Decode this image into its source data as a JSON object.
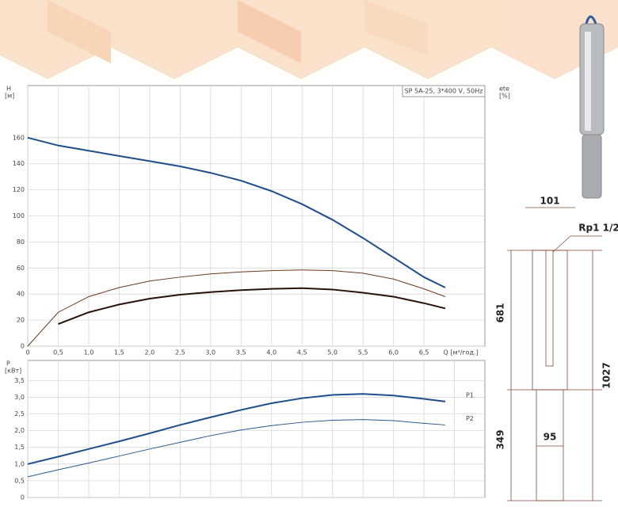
{
  "chart_data": [
    {
      "type": "line",
      "annotation": "SP 5A-25, 3*400 V, 50Hz",
      "ylabel": "H",
      "yunit": "[м]",
      "y2label": "ete",
      "y2unit": "[%]",
      "xlabel": "Q [м³/год.]",
      "xlim": [
        0,
        7.5
      ],
      "ylim": [
        0,
        200
      ],
      "xticks": [
        0,
        {
          "value": 0.5,
          "label": "0,5"
        },
        {
          "value": 1,
          "label": "1,0"
        },
        {
          "value": 1.5,
          "label": "1,5"
        },
        {
          "value": 2,
          "label": "2,0"
        },
        {
          "value": 2.5,
          "label": "2,5"
        },
        {
          "value": 3,
          "label": "3,0"
        },
        {
          "value": 3.5,
          "label": "3,5"
        },
        {
          "value": 4,
          "label": "4,0"
        },
        {
          "value": 4.5,
          "label": "4,5"
        },
        {
          "value": 5,
          "label": "5,0"
        },
        {
          "value": 5.5,
          "label": "5,5"
        },
        {
          "value": 6,
          "label": "6,0"
        },
        {
          "value": 6.5,
          "label": "6,5"
        }
      ],
      "yticks": [
        0,
        20,
        40,
        60,
        80,
        100,
        120,
        140,
        160
      ],
      "grid": true,
      "series": [
        {
          "color": "#1f4e8c",
          "width": 2,
          "x": [
            0,
            0.5,
            1,
            1.5,
            2,
            2.5,
            3,
            3.5,
            4,
            4.5,
            5,
            5.5,
            6,
            6.5,
            6.85
          ],
          "values": [
            160,
            154,
            150,
            146,
            142,
            138,
            133,
            127,
            119,
            109,
            97,
            83,
            68,
            53,
            45
          ]
        },
        {
          "color": "#6b3a1e",
          "width": 1,
          "x": [
            0,
            0.5,
            1,
            1.5,
            2,
            2.5,
            3,
            3.5,
            4,
            4.5,
            5,
            5.5,
            6,
            6.5,
            6.85
          ],
          "values": [
            0,
            26,
            38,
            45,
            50,
            53,
            55.5,
            57,
            58,
            58.5,
            58,
            56,
            51.5,
            44,
            38
          ]
        },
        {
          "color": "#2a120a",
          "width": 2,
          "x": [
            0.5,
            1,
            1.5,
            2,
            2.5,
            3,
            3.5,
            4,
            4.5,
            5,
            5.5,
            6,
            6.5,
            6.85
          ],
          "values": [
            17,
            26,
            32,
            36.5,
            39.5,
            41.5,
            43,
            44,
            44.5,
            43.5,
            41,
            38,
            33,
            29
          ]
        }
      ]
    },
    {
      "type": "line",
      "ylabel": "P",
      "yunit": "[кВт]",
      "xlim": [
        0,
        7.5
      ],
      "ylim": [
        0,
        4.1
      ],
      "xticks": [
        0,
        0.5,
        1,
        1.5,
        2,
        2.5,
        3,
        3.5,
        4,
        4.5,
        5,
        5.5,
        6,
        6.5,
        7
      ],
      "yticks": [
        0,
        {
          "value": 0.5,
          "label": "0,5"
        },
        {
          "value": 1,
          "label": "1,0"
        },
        {
          "value": 1.5,
          "label": "1,5"
        },
        {
          "value": 2,
          "label": "2,0"
        },
        {
          "value": 2.5,
          "label": "2,5"
        },
        {
          "value": 3,
          "label": "3,0"
        },
        {
          "value": 3.5,
          "label": "3,5"
        }
      ],
      "grid": true,
      "series": [
        {
          "name": "P1",
          "color": "#1f4e8c",
          "width": 2,
          "x": [
            0,
            0.5,
            1,
            1.5,
            2,
            2.5,
            3,
            3.5,
            4,
            4.5,
            5,
            5.5,
            6,
            6.5,
            6.85
          ],
          "values": [
            1,
            1.22,
            1.45,
            1.68,
            1.92,
            2.17,
            2.4,
            2.62,
            2.82,
            2.97,
            3.07,
            3.1,
            3.05,
            2.95,
            2.87
          ]
        },
        {
          "name": "P2",
          "color": "#2a5a8c",
          "width": 1,
          "x": [
            0,
            0.5,
            1,
            1.5,
            2,
            2.5,
            3,
            3.5,
            4,
            4.5,
            5,
            5.5,
            6,
            6.5,
            6.85
          ],
          "values": [
            0.62,
            0.83,
            1.03,
            1.24,
            1.45,
            1.65,
            1.85,
            2.02,
            2.15,
            2.25,
            2.31,
            2.33,
            2.3,
            2.22,
            2.17
          ]
        }
      ]
    }
  ],
  "drawing": {
    "top_width": 101,
    "thread": "Rp1 1/2",
    "pump_length": 681,
    "total_length": 1027,
    "motor_length": 349,
    "motor_diameter": 95
  }
}
